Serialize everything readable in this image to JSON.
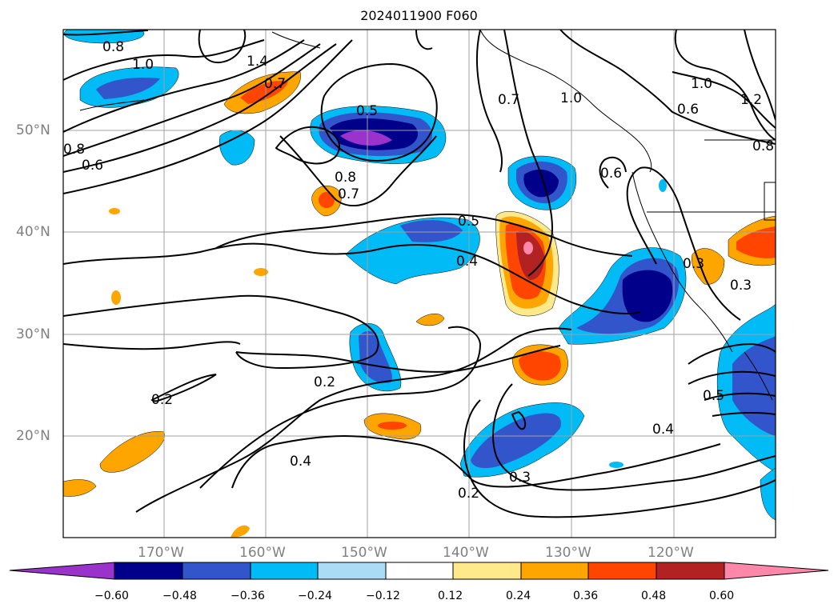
{
  "title": "2024011900 F060",
  "lat_labels": [
    "50°N",
    "40°N",
    "30°N",
    "20°N"
  ],
  "lon_labels": [
    "170°W",
    "160°W",
    "150°W",
    "140°W",
    "130°W",
    "120°W"
  ],
  "contour_labels": [
    "0.8",
    "1.0",
    "1.4",
    "0.7",
    "0.5",
    "0.8",
    "0.7",
    "0.7",
    "1.0",
    "1.0",
    "1.2",
    "0.6",
    "0.8",
    "0.6",
    "0.8",
    "0.6",
    "0.5",
    "0.4",
    "0.3",
    "0.3",
    "0.2",
    "0.2",
    "0.4",
    "0.3",
    "0.2",
    "0.4",
    "0.5"
  ],
  "colorbar": {
    "ticks": [
      "−0.60",
      "−0.48",
      "−0.36",
      "−0.24",
      "−0.12",
      "0.12",
      "0.24",
      "0.36",
      "0.48",
      "0.60"
    ],
    "colors": [
      "#9933cc",
      "#00008b",
      "#3355cc",
      "#00bbf5",
      "#aaddf5",
      "#ffffff",
      "#ffe98a",
      "#ffa500",
      "#ff4500",
      "#b22222",
      "#ff88aa"
    ]
  }
}
